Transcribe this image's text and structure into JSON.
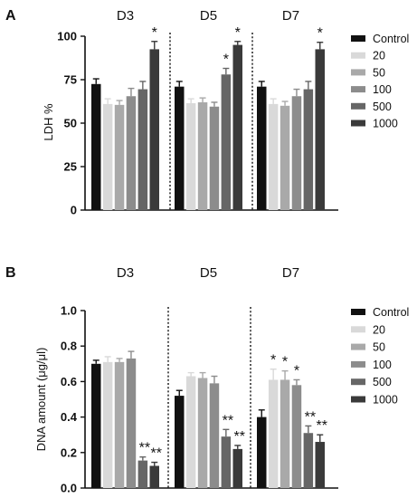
{
  "chart_data": [
    {
      "panel": "A",
      "type": "bar",
      "groups": [
        "D3",
        "D5",
        "D7"
      ],
      "ylabel": "LDH %",
      "ylim": [
        0,
        100
      ],
      "yticks": [
        "0",
        "25",
        "50",
        "75",
        "100"
      ],
      "legend_position": "right",
      "series": [
        {
          "name": "Control",
          "color": "#111111",
          "values": [
            72.5,
            71,
            71
          ],
          "errors": [
            3,
            3,
            3
          ]
        },
        {
          "name": "20",
          "color": "#d9d9d9",
          "values": [
            61,
            61.5,
            61
          ],
          "errors": [
            3,
            2.5,
            3
          ]
        },
        {
          "name": "50",
          "color": "#a9a9a9",
          "values": [
            60.5,
            62,
            60
          ],
          "errors": [
            2.5,
            2.5,
            2.5
          ]
        },
        {
          "name": "100",
          "color": "#8c8c8c",
          "values": [
            65.5,
            59.5,
            65.5
          ],
          "errors": [
            4.5,
            2.5,
            4
          ]
        },
        {
          "name": "500",
          "color": "#666666",
          "values": [
            69.5,
            78,
            69.5
          ],
          "errors": [
            4.5,
            3.5,
            4.5
          ]
        },
        {
          "name": "1000",
          "color": "#3a3a3a",
          "values": [
            92.5,
            95,
            92.5
          ],
          "errors": [
            4.5,
            2,
            4
          ]
        }
      ],
      "annotations": [
        {
          "group": 0,
          "series": 5,
          "text": "*"
        },
        {
          "group": 1,
          "series": 4,
          "text": "*"
        },
        {
          "group": 1,
          "series": 5,
          "text": "*"
        },
        {
          "group": 2,
          "series": 5,
          "text": "*"
        }
      ]
    },
    {
      "panel": "B",
      "type": "bar",
      "groups": [
        "D3",
        "D5",
        "D7"
      ],
      "ylabel": "DNA amount (μg/μl)",
      "ylim": [
        0,
        1.0
      ],
      "yticks": [
        "0.0",
        "0.2",
        "0.4",
        "0.6",
        "0.8",
        "1.0"
      ],
      "legend_position": "right",
      "series": [
        {
          "name": "Control",
          "color": "#111111",
          "values": [
            0.7,
            0.52,
            0.4
          ],
          "errors": [
            0.02,
            0.03,
            0.04
          ]
        },
        {
          "name": "20",
          "color": "#d9d9d9",
          "values": [
            0.71,
            0.63,
            0.61
          ],
          "errors": [
            0.03,
            0.02,
            0.06
          ]
        },
        {
          "name": "50",
          "color": "#a9a9a9",
          "values": [
            0.71,
            0.62,
            0.61
          ],
          "errors": [
            0.02,
            0.03,
            0.05
          ]
        },
        {
          "name": "100",
          "color": "#8c8c8c",
          "values": [
            0.73,
            0.59,
            0.58
          ],
          "errors": [
            0.04,
            0.04,
            0.03
          ]
        },
        {
          "name": "500",
          "color": "#666666",
          "values": [
            0.155,
            0.29,
            0.31
          ],
          "errors": [
            0.02,
            0.04,
            0.04
          ]
        },
        {
          "name": "1000",
          "color": "#3a3a3a",
          "values": [
            0.125,
            0.22,
            0.26
          ],
          "errors": [
            0.02,
            0.02,
            0.04
          ]
        }
      ],
      "annotations": [
        {
          "group": 0,
          "series": 4,
          "text": "**"
        },
        {
          "group": 0,
          "series": 5,
          "text": "**"
        },
        {
          "group": 1,
          "series": 4,
          "text": "**"
        },
        {
          "group": 1,
          "series": 5,
          "text": "**"
        },
        {
          "group": 2,
          "series": 1,
          "text": "*"
        },
        {
          "group": 2,
          "series": 2,
          "text": "*"
        },
        {
          "group": 2,
          "series": 3,
          "text": "*"
        },
        {
          "group": 2,
          "series": 4,
          "text": "**"
        },
        {
          "group": 2,
          "series": 5,
          "text": "**"
        }
      ]
    }
  ]
}
